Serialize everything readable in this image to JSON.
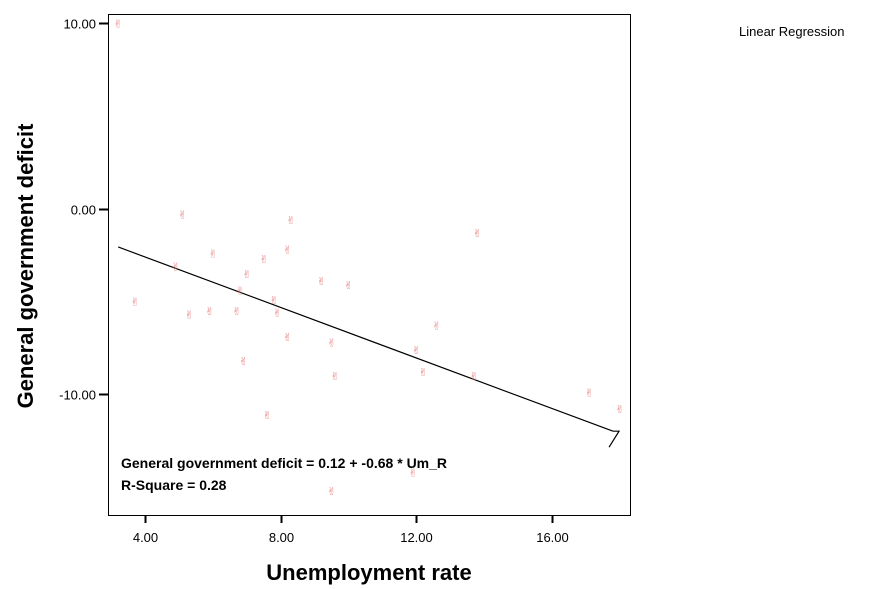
{
  "chart_data": {
    "type": "scatter",
    "xlabel": "Unemployment rate",
    "ylabel": "General government deficit",
    "xlim": [
      2.9,
      18.3
    ],
    "ylim": [
      -16.5,
      10.5
    ],
    "x_ticks": [
      4,
      8,
      12,
      16
    ],
    "x_tick_labels": [
      "4.00",
      "8.00",
      "12.00",
      "16.00"
    ],
    "y_ticks": [
      10,
      0,
      -10
    ],
    "y_tick_labels": [
      "10.00",
      "0.00",
      "-10.00"
    ],
    "grid": false,
    "marker_color": "#e88a8a",
    "marker_symbol": "✌",
    "legend": {
      "label": "Linear Regression",
      "position": "top-right"
    },
    "points": [
      {
        "x": 3.2,
        "y": 10.0
      },
      {
        "x": 5.1,
        "y": -0.3
      },
      {
        "x": 8.3,
        "y": -0.6
      },
      {
        "x": 13.8,
        "y": -1.3
      },
      {
        "x": 8.2,
        "y": -2.2
      },
      {
        "x": 6.0,
        "y": -2.4
      },
      {
        "x": 7.5,
        "y": -2.7
      },
      {
        "x": 4.9,
        "y": -3.1
      },
      {
        "x": 7.0,
        "y": -3.5
      },
      {
        "x": 9.2,
        "y": -3.9
      },
      {
        "x": 10.0,
        "y": -4.1
      },
      {
        "x": 6.8,
        "y": -4.4
      },
      {
        "x": 3.7,
        "y": -5.0
      },
      {
        "x": 7.8,
        "y": -4.9
      },
      {
        "x": 7.9,
        "y": -5.6
      },
      {
        "x": 5.3,
        "y": -5.7
      },
      {
        "x": 5.9,
        "y": -5.5
      },
      {
        "x": 6.7,
        "y": -5.5
      },
      {
        "x": 12.6,
        "y": -6.3
      },
      {
        "x": 8.2,
        "y": -6.9
      },
      {
        "x": 9.5,
        "y": -7.2
      },
      {
        "x": 12.0,
        "y": -7.6
      },
      {
        "x": 6.9,
        "y": -8.2
      },
      {
        "x": 12.2,
        "y": -8.8
      },
      {
        "x": 9.6,
        "y": -9.0
      },
      {
        "x": 13.7,
        "y": -9.0
      },
      {
        "x": 17.1,
        "y": -9.9
      },
      {
        "x": 18.0,
        "y": -10.8
      },
      {
        "x": 7.6,
        "y": -11.1
      },
      {
        "x": 11.9,
        "y": -14.2
      },
      {
        "x": 9.5,
        "y": -15.2
      }
    ],
    "regression": {
      "intercept": 0.12,
      "slope": -0.68,
      "x_range": [
        3.2,
        17.8
      ],
      "equation_text": "General government deficit = 0.12 + -0.68 * Um_R",
      "r_square_text": "R-Square = 0.28"
    }
  }
}
